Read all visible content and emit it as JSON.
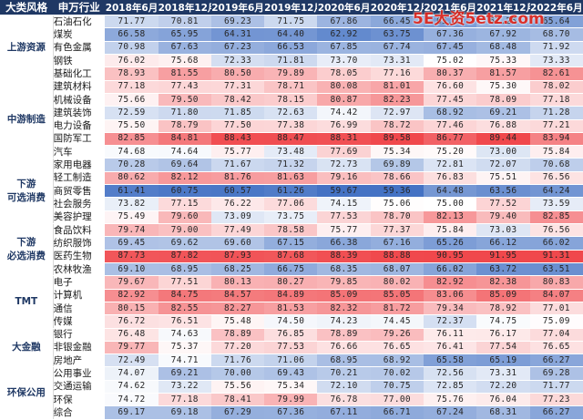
{
  "headers": {
    "style": "大类风格",
    "industry": "申万行业",
    "periods": [
      "2018年6月",
      "2018年12月",
      "2019年6月",
      "2019年12月",
      "2020年6月",
      "2020年12月",
      "2021年6月",
      "2021年12月",
      "2022年6月"
    ]
  },
  "watermark": "5E大资5etz.com",
  "colors": {
    "low": "#4472c4",
    "mid": "#ffffff",
    "high": "#f0484c",
    "header_bg": "#1f3864"
  },
  "groups": [
    {
      "name": "上游资源",
      "rows": [
        {
          "industry": "石油石化",
          "values": [
            "71.77",
            "70.81",
            "69.23",
            "71.75",
            "67.86",
            "66.45",
            "65.11",
            "67.25",
            "65.64"
          ]
        },
        {
          "industry": "煤炭",
          "values": [
            "66.58",
            "65.95",
            "64.31",
            "64.40",
            "62.92",
            "63.75",
            "67.36",
            "67.92",
            "68.70"
          ]
        },
        {
          "industry": "有色金属",
          "values": [
            "70.98",
            "67.63",
            "67.23",
            "66.53",
            "67.85",
            "67.74",
            "67.45",
            "68.48",
            "71.92"
          ]
        },
        {
          "industry": "钢铁",
          "values": [
            "76.02",
            "75.68",
            "72.33",
            "71.81",
            "73.70",
            "73.31",
            "75.02",
            "75.33",
            "73.33"
          ]
        },
        {
          "industry": "基础化工",
          "values": [
            "78.93",
            "81.55",
            "80.50",
            "79.89",
            "78.05",
            "77.16",
            "80.37",
            "81.57",
            "82.61"
          ]
        }
      ]
    },
    {
      "name": "中游制造",
      "rows": [
        {
          "industry": "建筑材料",
          "values": [
            "77.18",
            "77.43",
            "77.31",
            "78.71",
            "80.08",
            "81.01",
            "76.60",
            "75.30",
            "78.02"
          ]
        },
        {
          "industry": "机械设备",
          "values": [
            "75.66",
            "79.50",
            "78.42",
            "78.15",
            "80.87",
            "82.23",
            "77.45",
            "78.09",
            "77.18"
          ]
        },
        {
          "industry": "建筑装饰",
          "values": [
            "72.59",
            "71.80",
            "71.85",
            "72.63",
            "74.42",
            "72.97",
            "68.92",
            "69.21",
            "71.28"
          ]
        },
        {
          "industry": "电力设备",
          "values": [
            "75.50",
            "78.79",
            "77.50",
            "77.38",
            "76.99",
            "78.72",
            "77.46",
            "76.88",
            "77.21"
          ]
        },
        {
          "industry": "国防军工",
          "values": [
            "82.85",
            "84.81",
            "88.43",
            "88.47",
            "88.31",
            "89.58",
            "86.77",
            "89.44",
            "83.94"
          ]
        },
        {
          "industry": "汽车",
          "values": [
            "74.68",
            "74.64",
            "75.77",
            "73.48",
            "77.69",
            "75.34",
            "75.20",
            "73.00",
            "75.84"
          ]
        }
      ]
    },
    {
      "name": "下游可选消费",
      "rows": [
        {
          "industry": "家用电器",
          "values": [
            "70.28",
            "69.64",
            "71.67",
            "71.32",
            "72.73",
            "69.89",
            "72.81",
            "72.07",
            "70.68"
          ]
        },
        {
          "industry": "轻工制造",
          "values": [
            "80.62",
            "82.12",
            "81.76",
            "81.63",
            "79.16",
            "78.66",
            "76.83",
            "75.51",
            "76.56"
          ]
        },
        {
          "industry": "商贸零售",
          "values": [
            "61.41",
            "60.75",
            "60.57",
            "61.26",
            "59.67",
            "59.36",
            "64.48",
            "63.56",
            "64.24"
          ]
        },
        {
          "industry": "社会服务",
          "values": [
            "73.82",
            "77.15",
            "76.22",
            "77.06",
            "74.15",
            "75.06",
            "75.00",
            "77.52",
            "73.59"
          ]
        },
        {
          "industry": "美容护理",
          "values": [
            "75.49",
            "79.60",
            "73.09",
            "73.75",
            "77.53",
            "78.70",
            "82.13",
            "79.40",
            "82.85"
          ]
        }
      ]
    },
    {
      "name": "下游必选消费",
      "rows": [
        {
          "industry": "食品饮料",
          "values": [
            "79.74",
            "79.00",
            "77.49",
            "78.58",
            "75.77",
            "77.37",
            "75.84",
            "73.03",
            "76.56"
          ]
        },
        {
          "industry": "纺织服饰",
          "values": [
            "69.45",
            "69.62",
            "69.60",
            "67.15",
            "66.38",
            "67.16",
            "65.26",
            "66.12",
            "66.02"
          ]
        },
        {
          "industry": "医药生物",
          "values": [
            "87.73",
            "87.82",
            "87.93",
            "87.68",
            "88.39",
            "88.88",
            "90.95",
            "91.95",
            "91.31"
          ]
        },
        {
          "industry": "农林牧渔",
          "values": [
            "69.10",
            "68.95",
            "68.25",
            "66.75",
            "68.35",
            "68.07",
            "66.02",
            "63.72",
            "63.51"
          ]
        }
      ]
    },
    {
      "name": "TMT",
      "rows": [
        {
          "industry": "电子",
          "values": [
            "79.67",
            "77.51",
            "80.13",
            "80.27",
            "79.85",
            "80.02",
            "82.92",
            "82.38",
            "80.83"
          ]
        },
        {
          "industry": "计算机",
          "values": [
            "82.92",
            "84.75",
            "84.57",
            "84.89",
            "85.09",
            "85.05",
            "83.06",
            "85.09",
            "84.07"
          ]
        },
        {
          "industry": "通信",
          "values": [
            "80.15",
            "82.55",
            "82.27",
            "81.53",
            "82.32",
            "81.72",
            "79.34",
            "78.92",
            "77.01"
          ]
        },
        {
          "industry": "传媒",
          "values": [
            "76.72",
            "76.51",
            "75.48",
            "74.50",
            "74.23",
            "74.45",
            "72.37",
            "74.75",
            "75.09"
          ]
        }
      ]
    },
    {
      "name": "大金融",
      "rows": [
        {
          "industry": "银行",
          "values": [
            "76.48",
            "74.63",
            "78.89",
            "76.85",
            "78.89",
            "79.26",
            "76.11",
            "76.17",
            "77.04"
          ]
        },
        {
          "industry": "非银金融",
          "values": [
            "79.77",
            "75.37",
            "77.20",
            "77.53",
            "76.66",
            "76.65",
            "76.41",
            "77.54",
            "76.65"
          ]
        },
        {
          "industry": "房地产",
          "values": [
            "72.49",
            "74.71",
            "71.76",
            "71.06",
            "68.95",
            "68.92",
            "65.58",
            "65.19",
            "66.27"
          ]
        }
      ]
    },
    {
      "name": "环保公用",
      "rows": [
        {
          "industry": "公用事业",
          "values": [
            "74.07",
            "69.21",
            "70.00",
            "69.43",
            "70.21",
            "70.02",
            "72.56",
            "73.31",
            "69.28"
          ]
        },
        {
          "industry": "交通运输",
          "values": [
            "74.62",
            "73.22",
            "75.56",
            "75.34",
            "72.10",
            "70.75",
            "72.85",
            "72.20",
            "71.77"
          ]
        },
        {
          "industry": "环保",
          "values": [
            "74.72",
            "77.18",
            "78.41",
            "79.99",
            "76.78",
            "77.00",
            "75.76",
            "76.04",
            "77.23"
          ]
        },
        {
          "industry": "综合",
          "values": [
            "69.17",
            "69.18",
            "67.29",
            "67.36",
            "67.11",
            "66.71",
            "67.24",
            "68.31",
            "66.27"
          ]
        }
      ]
    }
  ]
}
